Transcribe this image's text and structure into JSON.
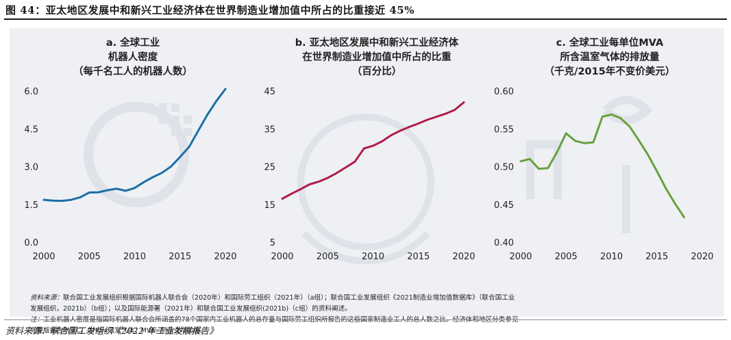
{
  "figure_title": "图 44：亚太地区发展中和新兴工业经济体在世界制造业增加值中所占的比重接近 45%",
  "source_line": "资料来源：联合国工发组织《2022 年工业发展报告》",
  "colors": {
    "blue": "#1a6fa4",
    "red": "#b01c45",
    "green": "#66a13a",
    "panel_bg": "#eef0f4",
    "watermark": "#dfe2e8"
  },
  "notes": {
    "source_label": "资料来源：",
    "source_lines": [
      "联合国工业发展组织根据国际机器人联合会（2020年）和国际劳工组织（2021年）（a组）；联合国工业发展组织《2021制造业增加值数据库》（联合国工业",
      "发展组织，2021b）（b组）；以及国际能源署（2021年）和联合国工业发展组织(2021b)（c组）的资料阐述。"
    ],
    "note_label": "注：",
    "note_lines": [
      "工业机器人密度是指国际机器人联合会所涵盖的78个国家内工业机器人的总存量与国际劳工组织所报告的这些国家制造业工人的总人数之比。经济体和地区分类参见",
      "完整版报告附录C。GHG=温室气体；MVA=制造业增加值。"
    ]
  },
  "chart_data": [
    {
      "type": "line",
      "title": [
        "a. 全球工业",
        "机器人密度",
        "（每千名工人的机器人数）"
      ],
      "x_ticks": [
        "2000",
        "2005",
        "2010",
        "2015",
        "2020"
      ],
      "y_ticks": [
        "0.0",
        "1.5",
        "3.0",
        "4.5",
        "6.0"
      ],
      "xlim": [
        2000,
        2020
      ],
      "ylim": [
        0,
        6
      ],
      "color": "#1a6fa4",
      "x": [
        2000,
        2001,
        2002,
        2003,
        2004,
        2005,
        2006,
        2007,
        2008,
        2009,
        2010,
        2011,
        2012,
        2013,
        2014,
        2015,
        2016,
        2017,
        2018,
        2019,
        2020
      ],
      "y": [
        1.68,
        1.65,
        1.64,
        1.68,
        1.78,
        1.97,
        1.98,
        2.06,
        2.12,
        2.04,
        2.15,
        2.38,
        2.58,
        2.75,
        3.0,
        3.38,
        3.78,
        4.42,
        5.05,
        5.6,
        6.08
      ]
    },
    {
      "type": "line",
      "title": [
        "b. 亚太地区发展中和新兴工业经济体",
        "在世界制造业增加值中所占的比重",
        "（百分比）"
      ],
      "x_ticks": [
        "2000",
        "2005",
        "2010",
        "2015",
        "2020"
      ],
      "y_ticks": [
        "5",
        "15",
        "25",
        "35",
        "45"
      ],
      "xlim": [
        2000,
        2020
      ],
      "ylim": [
        5,
        45
      ],
      "color": "#b01c45",
      "x": [
        2000,
        2001,
        2002,
        2003,
        2004,
        2005,
        2006,
        2007,
        2008,
        2009,
        2010,
        2011,
        2012,
        2013,
        2014,
        2015,
        2016,
        2017,
        2018,
        2019,
        2020
      ],
      "y": [
        16.5,
        17.8,
        19.0,
        20.3,
        21.0,
        22.0,
        23.3,
        24.8,
        26.3,
        29.8,
        30.5,
        31.7,
        33.3,
        34.5,
        35.5,
        36.4,
        37.4,
        38.2,
        39.0,
        40.0,
        42.0
      ]
    },
    {
      "type": "line",
      "title": [
        "c. 全球工业每单位MVA",
        "所含温室气体的排放量",
        "（千克/2015年不变价美元）"
      ],
      "x_ticks": [
        "2000",
        "2005",
        "2010",
        "2015",
        "2020"
      ],
      "y_ticks": [
        "0.40",
        "0.45",
        "0.50",
        "0.55",
        "0.60"
      ],
      "xlim": [
        2000,
        2020
      ],
      "ylim": [
        0.4,
        0.6
      ],
      "color": "#66a13a",
      "x": [
        2000,
        2001,
        2002,
        2003,
        2004,
        2005,
        2006,
        2007,
        2008,
        2009,
        2010,
        2011,
        2012,
        2013,
        2014,
        2015,
        2016,
        2017,
        2018
      ],
      "y": [
        0.507,
        0.51,
        0.497,
        0.498,
        0.519,
        0.544,
        0.534,
        0.531,
        0.532,
        0.566,
        0.569,
        0.564,
        0.553,
        0.535,
        0.516,
        0.494,
        0.471,
        0.451,
        0.433
      ]
    }
  ]
}
